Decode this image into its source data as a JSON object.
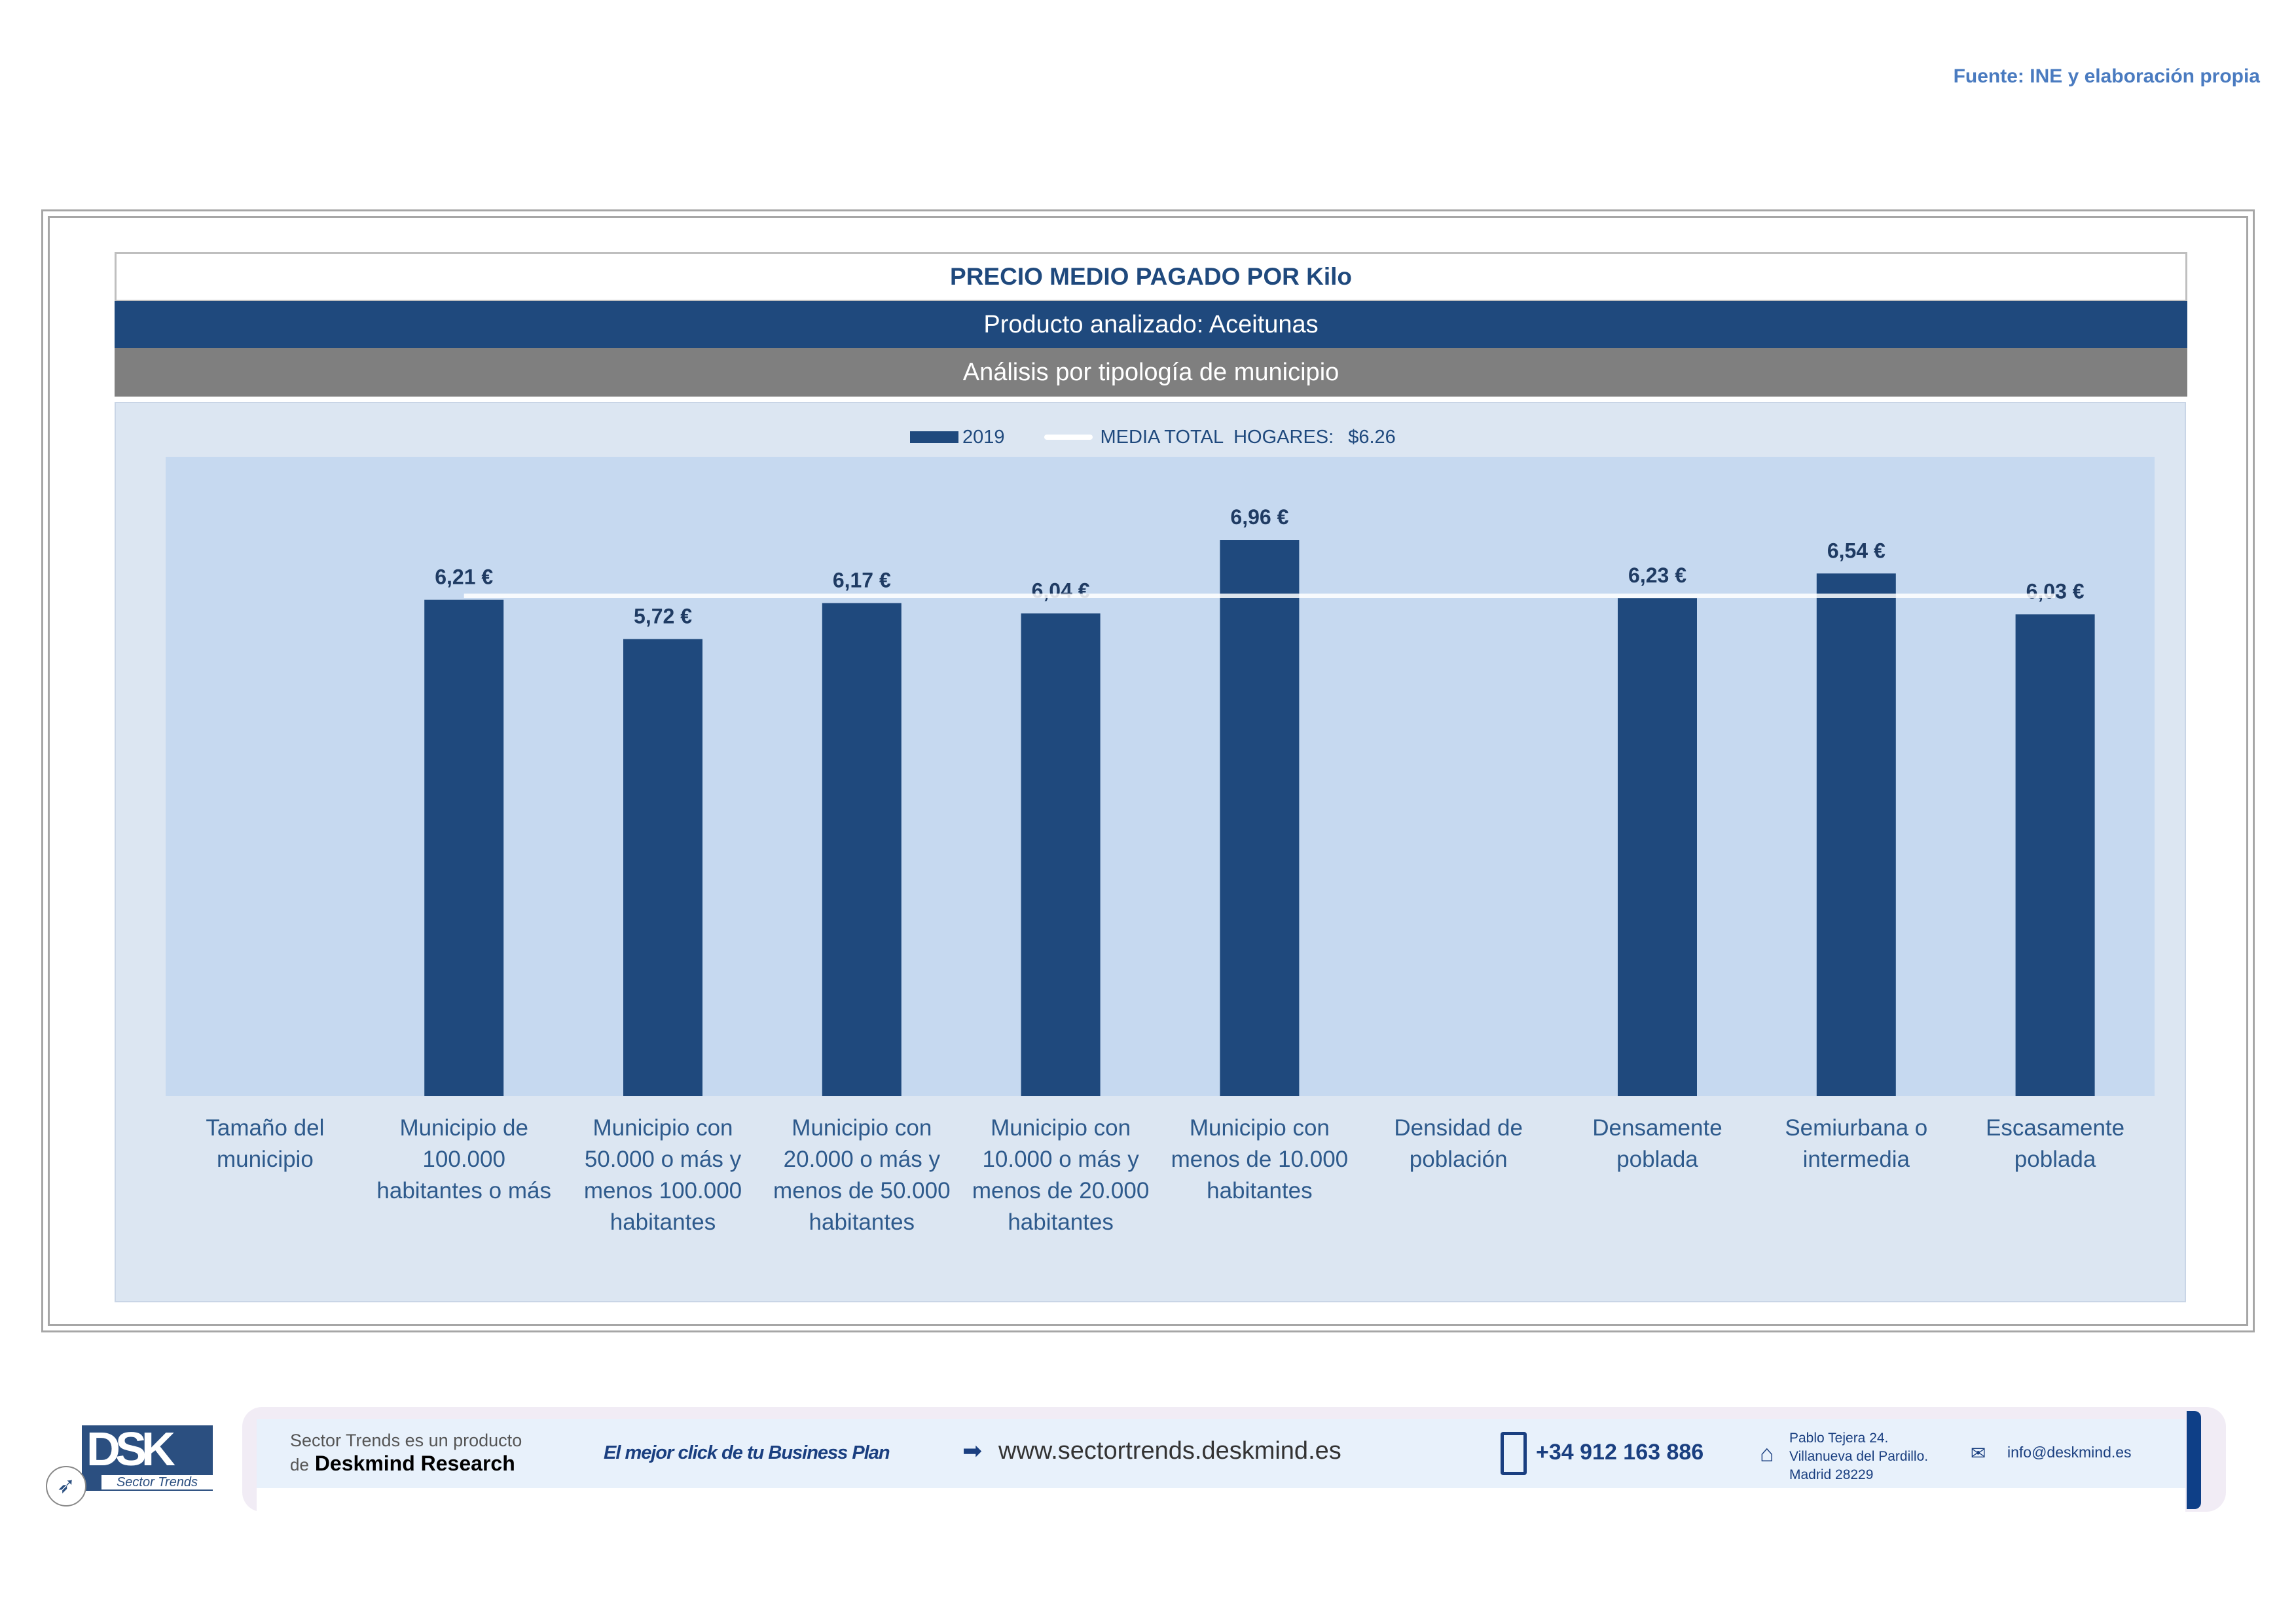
{
  "source": "Fuente: INE y elaboración propia",
  "header": {
    "title": "PRECIO MEDIO PAGADO POR Kilo",
    "product": "Producto analizado: Aceitunas",
    "analysis": "Análisis por tipología de municipio"
  },
  "chart_data": {
    "type": "bar",
    "categories": [
      "Tamaño del\nmunicipio",
      "Municipio de\n100.000\nhabitantes o más",
      "Municipio con\n50.000 o más y\nmenos 100.000\nhabitantes",
      "Municipio con\n20.000 o más y\nmenos de 50.000\nhabitantes",
      "Municipio con\n10.000 o más y\nmenos de 20.000\nhabitantes",
      "Municipio con\nmenos de 10.000\nhabitantes",
      "Densidad de\npoblación",
      "Densamente\npoblada",
      "Semiurbana o\nintermedia",
      "Escasamente\npoblada"
    ],
    "series": [
      {
        "name": "2019",
        "values": [
          null,
          6.21,
          5.72,
          6.17,
          6.04,
          6.96,
          null,
          6.23,
          6.54,
          6.03
        ],
        "labels": [
          null,
          "6,21 €",
          "5,72 €",
          "6,17 €",
          "6,04 €",
          "6,96 €",
          null,
          "6,23 €",
          "6,54 €",
          "6,03 €"
        ],
        "color": "#1f497d"
      },
      {
        "name": "MEDIA TOTAL  HOGARES:",
        "type": "line",
        "value": 6.26,
        "value_label": "$6.26",
        "color": "#ffffff"
      }
    ],
    "ylim": [
      0,
      8
    ],
    "legend_position": "top",
    "grid": false,
    "title": "",
    "xlabel": "",
    "ylabel": ""
  },
  "footer": {
    "logo_text": "DSK",
    "logo_sub": "Sector Trends",
    "tagline1": "Sector Trends es un producto",
    "tagline2_prefix": "de",
    "tagline2_brand": "Deskmind Research",
    "slogan": "El mejor click de tu Business Plan",
    "website": "www.sectortrends.deskmind.es",
    "phone": "+34 912 163 886",
    "address1": "Pablo Tejera 24.",
    "address2": "Villanueva del Pardillo.",
    "address3": "Madrid 28229",
    "email": "info@deskmind.es"
  }
}
